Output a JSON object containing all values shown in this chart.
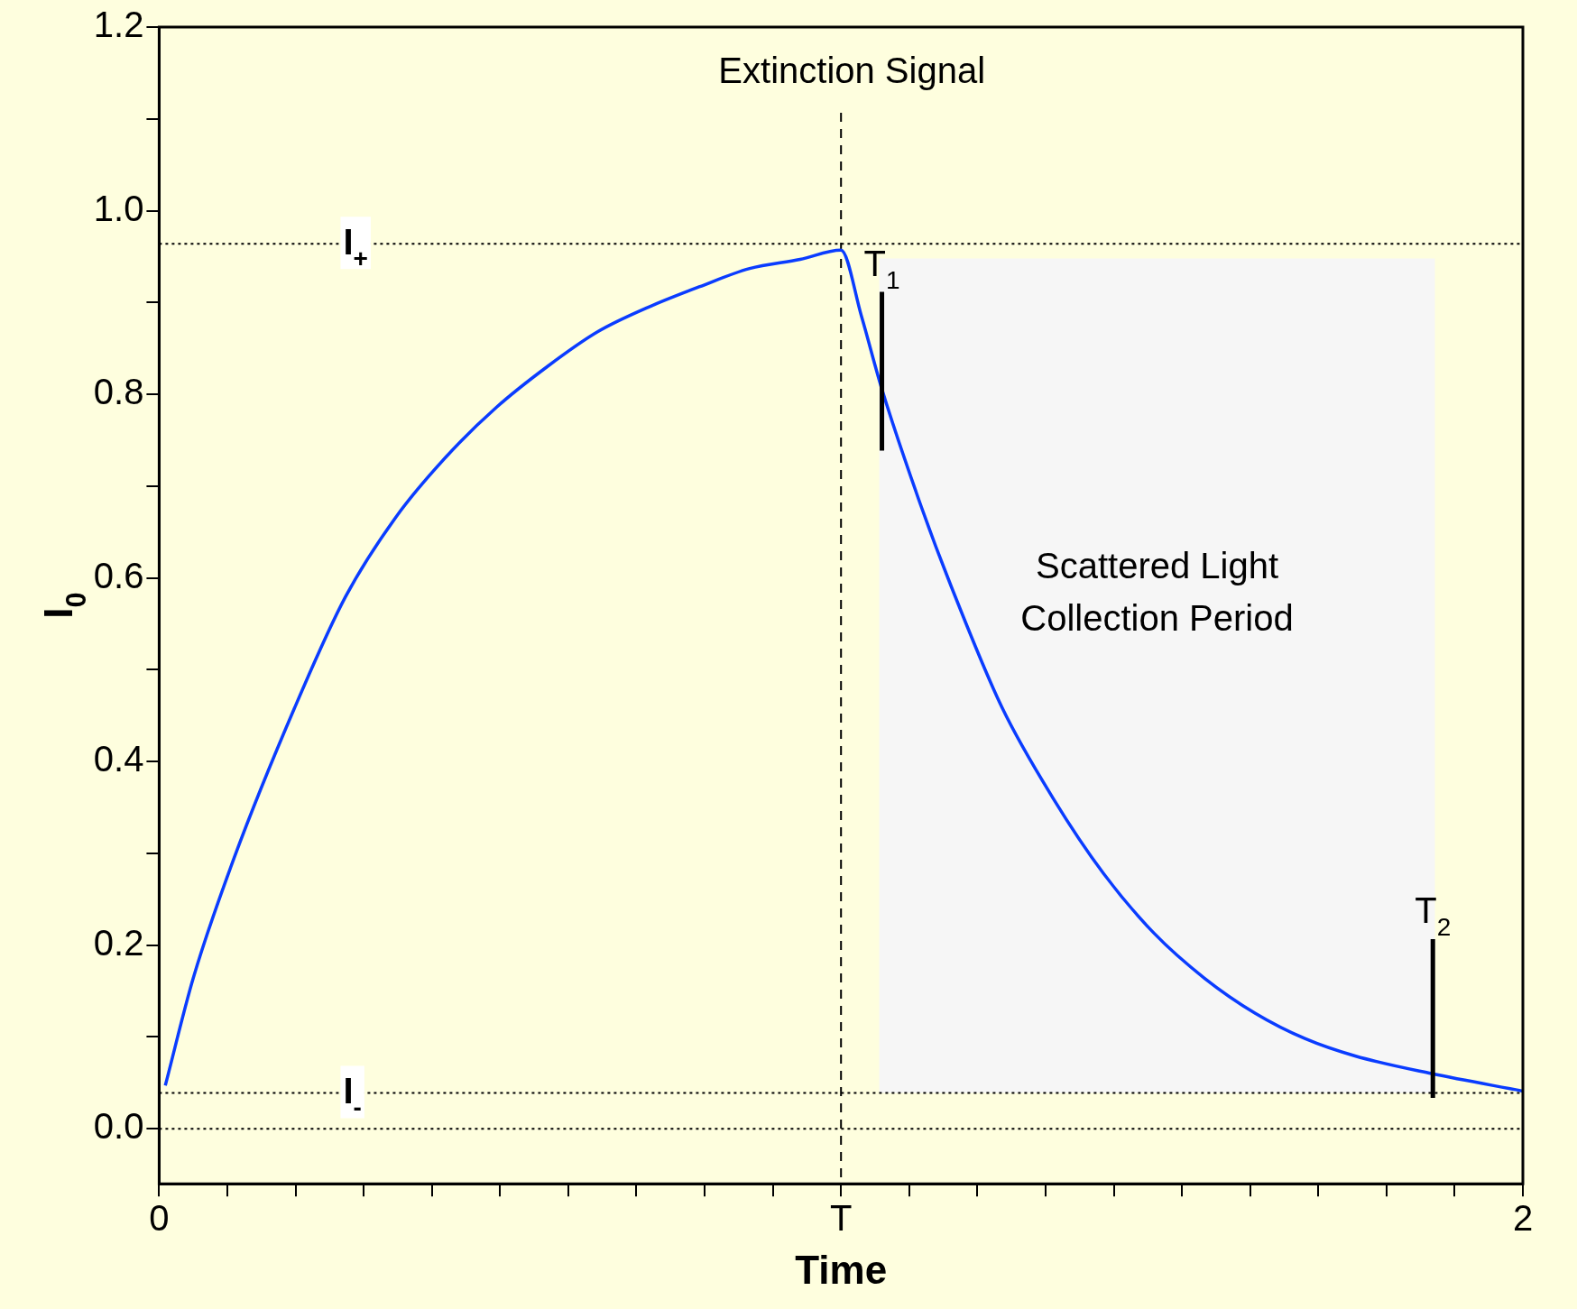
{
  "chart_data": {
    "type": "line",
    "xlabel": "Time",
    "ylabel": "I$_{0}$",
    "xlim": [
      0,
      2
    ],
    "xticks": [
      0,
      {
        "value": 0.1,
        "label": null
      },
      {
        "value": 0.2,
        "label": null
      },
      {
        "value": 0.3,
        "label": null
      },
      {
        "value": 0.4,
        "label": null
      },
      {
        "value": 0.5,
        "label": null
      },
      {
        "value": 0.6,
        "label": null
      },
      {
        "value": 0.7,
        "label": null
      },
      {
        "value": 0.8,
        "label": null
      },
      {
        "value": 0.9,
        "label": null
      },
      {
        "value": 1,
        "label": "T"
      },
      {
        "value": 1.1,
        "label": null
      },
      {
        "value": 1.2,
        "label": null
      },
      {
        "value": 1.3,
        "label": null
      },
      {
        "value": 1.4,
        "label": null
      },
      {
        "value": 1.5,
        "label": null
      },
      {
        "value": 1.6,
        "label": null
      },
      {
        "value": 1.7,
        "label": null
      },
      {
        "value": 1.8,
        "label": null
      },
      {
        "value": 1.9,
        "label": null
      },
      2
    ],
    "ylim": [
      -0.06,
      1.2
    ],
    "yticks": [
      {
        "value": 0,
        "label": "0.0"
      },
      {
        "value": 0.1,
        "label": null
      },
      0.2,
      {
        "value": 0.3,
        "label": null
      },
      0.4,
      {
        "value": 0.5,
        "label": null
      },
      0.6,
      {
        "value": 0.7,
        "label": null
      },
      0.8,
      {
        "value": 0.9,
        "label": null
      },
      {
        "value": 1,
        "label": "1.0"
      },
      {
        "value": 1.1,
        "label": null
      },
      1.2
    ],
    "grid": false,
    "legend": false,
    "marker": "none",
    "line_style": "solid",
    "series": [
      {
        "color": "#0a3cff",
        "x": [
          0.009,
          0.05,
          0.11,
          0.199,
          0.273,
          0.347,
          0.421,
          0.495,
          0.569,
          0.643,
          0.718,
          0.792,
          0.866,
          0.94,
          1.0,
          1.03,
          1.059,
          1.118,
          1.162,
          1.236,
          1.311,
          1.385,
          1.459,
          1.533,
          1.607,
          1.681,
          1.755,
          1.866,
          2.0
        ],
        "values": [
          0.047,
          0.164,
          0.295,
          0.459,
          0.579,
          0.666,
          0.732,
          0.786,
          0.83,
          0.868,
          0.895,
          0.917,
          0.937,
          0.947,
          0.957,
          0.885,
          0.808,
          0.677,
          0.59,
          0.459,
          0.36,
          0.278,
          0.213,
          0.164,
          0.126,
          0.098,
          0.079,
          0.06,
          0.041
        ]
      }
    ],
    "ref_lines": [
      {
        "axis": "y",
        "value": 0.964,
        "label": "I$_{+}$",
        "line_style": "dotted"
      },
      {
        "axis": "y",
        "value": 0.039,
        "label": "I$_{-}$",
        "line_style": "dotted"
      },
      {
        "axis": "y",
        "value": 0,
        "line_style": "dotted"
      },
      {
        "axis": "x",
        "value": 1,
        "label": "Extinction Signal",
        "line_style": "dashed"
      }
    ],
    "bands": [
      {
        "axis": "x",
        "from": 1.056,
        "to": 1.871,
        "label": "Scattered Light Collection Period",
        "color": "#f6f6f6"
      }
    ],
    "annotations": [
      {
        "text": "T$_{1}$",
        "x": 1.06,
        "y": 0.825
      },
      {
        "text": "T$_{2}$",
        "x": 1.868,
        "y": 0.12
      }
    ]
  }
}
